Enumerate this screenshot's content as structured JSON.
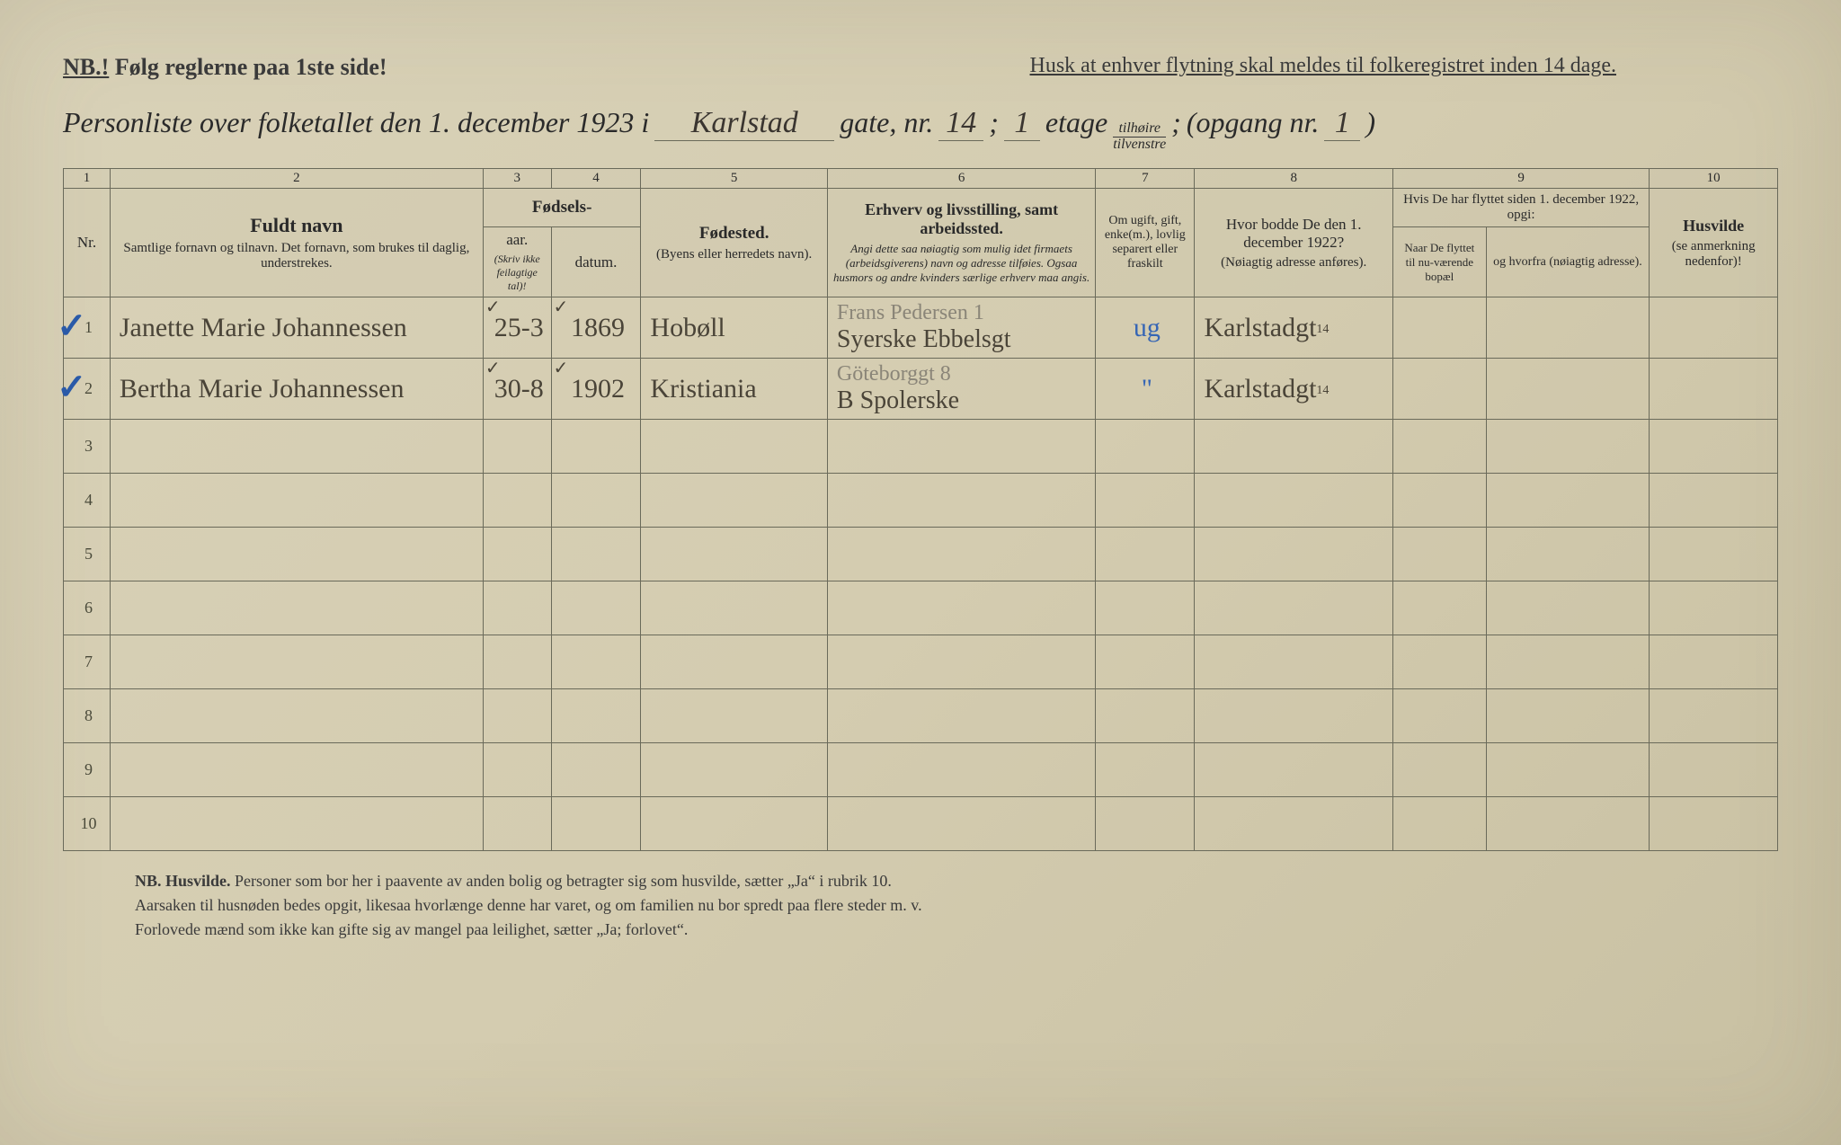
{
  "header": {
    "nb_prefix": "NB.!",
    "nb_text": "Følg reglerne paa 1ste side!",
    "husk_text": "Husk at enhver flytning skal meldes til folkeregistret inden 14 dage."
  },
  "title": {
    "prefix": "Personliste over folketallet den 1. december 1923 i",
    "street": "Karlstad",
    "gate_label": "gate, nr.",
    "nr": "14",
    "semicolon1": ";",
    "etage_nr": "1",
    "etage_label": "etage",
    "frac_top": "tilhøire",
    "frac_bot": "tilvenstre",
    "semicolon2": ";",
    "opgang_label": "(opgang nr.",
    "opgang_nr": "1",
    "close_paren": ")"
  },
  "columns": {
    "c1": "1",
    "c2": "2",
    "c3": "3",
    "c4": "4",
    "c5": "5",
    "c6": "6",
    "c7": "7",
    "c8": "8",
    "c9": "9",
    "c10": "10",
    "nr": "Nr.",
    "fuldt_navn": "Fuldt navn",
    "fuldt_navn_sub": "Samtlige fornavn og tilnavn. Det fornavn, som brukes til daglig, understrekes.",
    "fodsels": "Fødsels-",
    "aar": "aar.",
    "datum": "datum.",
    "fodsels_sub": "(Skriv ikke feilagtige tal)!",
    "fodested": "Fødested.",
    "fodested_sub": "(Byens eller herredets navn).",
    "erhverv": "Erhverv og livsstilling, samt arbeidssted.",
    "erhverv_sub": "Angi dette saa nøiagtig som mulig idet firmaets (arbeidsgiverens) navn og adresse tilføies. Ogsaa husmors og andre kvinders særlige erhverv maa angis.",
    "ugift": "Om ugift, gift, enke(m.), lovlig separert eller fraskilt",
    "bodde": "Hvor bodde De den 1. december 1922?",
    "bodde_sub": "(Nøiagtig adresse anføres).",
    "flyttet": "Hvis De har flyttet siden 1. december 1922, opgi:",
    "naar": "Naar De flyttet til nu-værende bopæl",
    "hvorfra": "og hvorfra (nøiagtig adresse).",
    "husvilde": "Husvilde",
    "husvilde_sub": "(se anmerkning nedenfor)!"
  },
  "rows": [
    {
      "nr": "1",
      "check": true,
      "navn": "Janette Marie Johannessen",
      "aar": "25-3",
      "aar_tick": "✓",
      "datum": "1869",
      "datum_tick": "✓",
      "fodested": "Hobøll",
      "erhverv_top": "Frans Pedersen 1",
      "erhverv": "Syerske Ebbelsgt",
      "ugift": "ug",
      "bodde": "Karlstadgt",
      "bodde_sup": "14"
    },
    {
      "nr": "2",
      "check": true,
      "navn": "Bertha Marie Johannessen",
      "aar": "30-8",
      "aar_tick": "✓",
      "datum": "1902",
      "datum_tick": "✓",
      "fodested": "Kristiania",
      "erhverv_top": "Göteborggt 8",
      "erhverv": "B Spolerske",
      "ugift": "\"",
      "bodde": "Karlstadgt",
      "bodde_sup": "14"
    },
    {
      "nr": "3"
    },
    {
      "nr": "4"
    },
    {
      "nr": "5"
    },
    {
      "nr": "6"
    },
    {
      "nr": "7"
    },
    {
      "nr": "8"
    },
    {
      "nr": "9"
    },
    {
      "nr": "10"
    }
  ],
  "footer": {
    "nb": "NB.",
    "husvilde_label": "Husvilde.",
    "line1": "Personer som bor her i paavente av anden bolig og betragter sig som husvilde, sætter „Ja“ i rubrik 10.",
    "line2": "Aarsaken til husnøden bedes opgit, likesaa hvorlænge denne har varet, og om familien nu bor spredt paa flere steder m. v.",
    "line3": "Forlovede mænd som ikke kan gifte sig av mangel paa leilighet, sætter „Ja; forlovet“."
  }
}
